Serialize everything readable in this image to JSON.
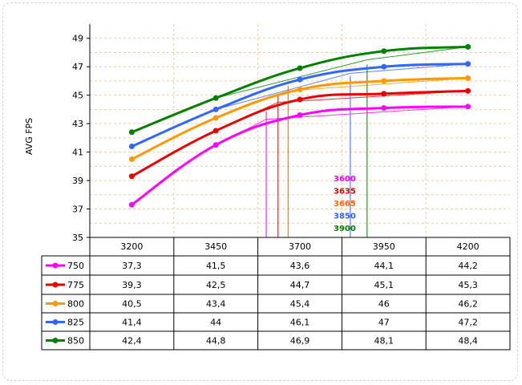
{
  "chart_data": {
    "type": "line",
    "ylabel": "AVG FPS",
    "ylim": [
      35,
      50
    ],
    "yticks": [
      35,
      37,
      39,
      41,
      43,
      45,
      47,
      49
    ],
    "categories": [
      "3200",
      "3450",
      "3700",
      "3950",
      "4200"
    ],
    "grid": true,
    "series": [
      {
        "name": "750",
        "color": "#ff00ff",
        "values": [
          37.3,
          41.5,
          43.6,
          44.1,
          44.2
        ],
        "labels": [
          "37,3",
          "41,5",
          "43,6",
          "44,1",
          "44,2"
        ]
      },
      {
        "name": "775",
        "color": "#e60000",
        "values": [
          39.3,
          42.5,
          44.7,
          45.1,
          45.3
        ],
        "labels": [
          "39,3",
          "42,5",
          "44,7",
          "45,1",
          "45,3"
        ]
      },
      {
        "name": "800",
        "color": "#ff9900",
        "values": [
          40.5,
          43.4,
          45.4,
          46,
          46.2
        ],
        "labels": [
          "40,5",
          "43,4",
          "45,4",
          "46",
          "46,2"
        ]
      },
      {
        "name": "825",
        "color": "#3366ff",
        "values": [
          41.4,
          44,
          46.1,
          47,
          47.2
        ],
        "labels": [
          "41,4",
          "44",
          "46,1",
          "47",
          "47,2"
        ]
      },
      {
        "name": "850",
        "color": "#008000",
        "values": [
          42.4,
          44.8,
          46.9,
          48.1,
          48.4
        ],
        "labels": [
          "42,4",
          "44,8",
          "46,9",
          "48,1",
          "48,4"
        ]
      }
    ],
    "annotations": [
      {
        "text": "3600",
        "x": 3600,
        "color": "#ff00ff",
        "series": "750"
      },
      {
        "text": "3635",
        "x": 3635,
        "color": "#e60000",
        "series": "775"
      },
      {
        "text": "3665",
        "x": 3665,
        "color": "#ff6600",
        "series": "800"
      },
      {
        "text": "3850",
        "x": 3850,
        "color": "#3366ff",
        "series": "825"
      },
      {
        "text": "3900",
        "x": 3900,
        "color": "#008000",
        "series": "850"
      }
    ]
  }
}
